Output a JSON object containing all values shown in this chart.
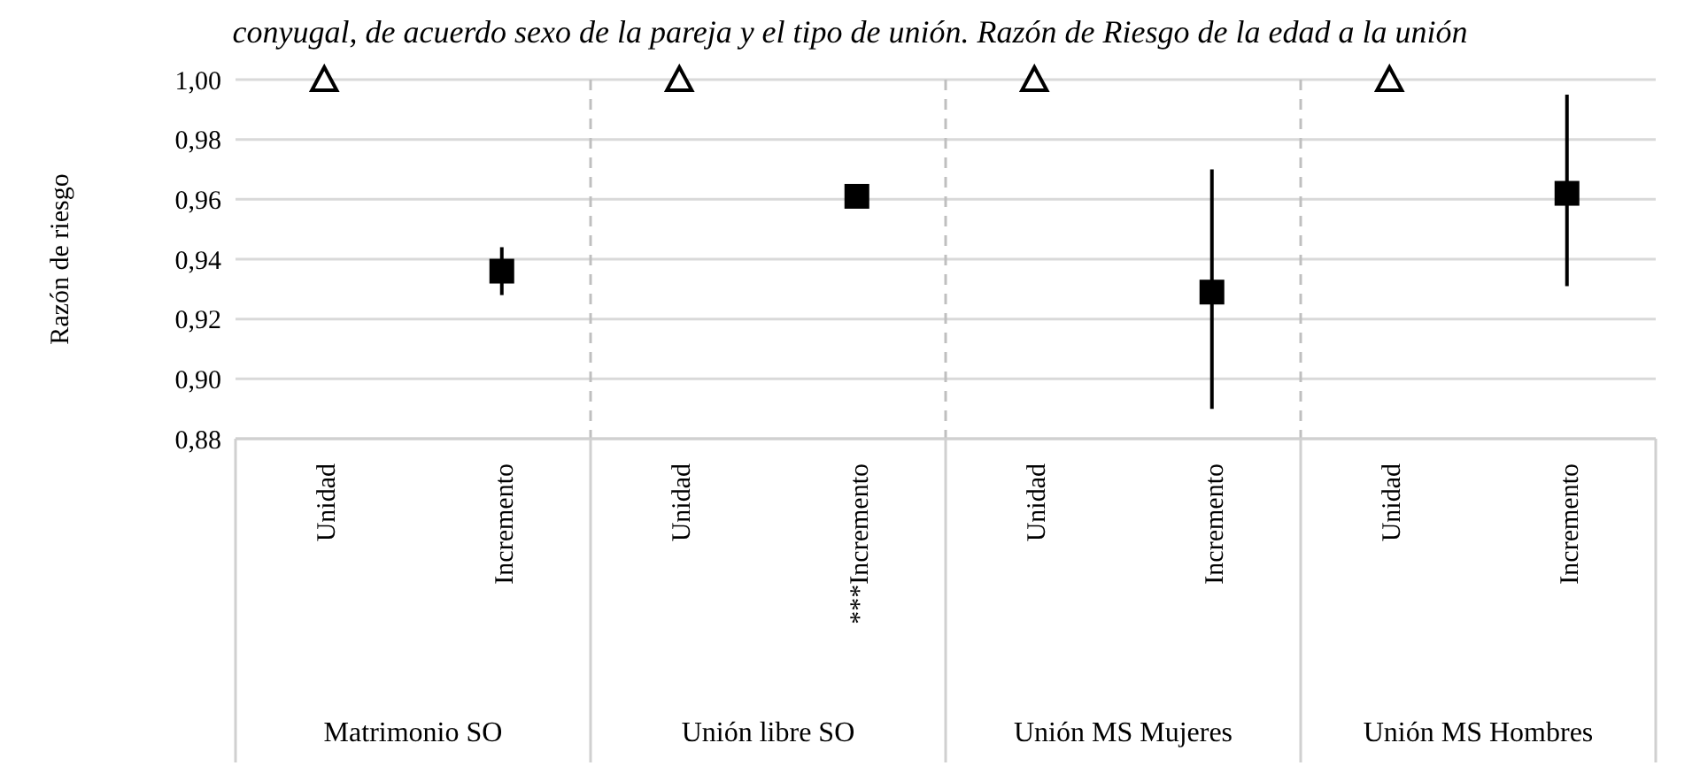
{
  "chart_data": {
    "type": "scatter",
    "title": "conyugal, de acuerdo sexo de la pareja y el tipo de unión. Razón de Riesgo de la edad a la unión",
    "ylabel": "Razón de riesgo",
    "categories": [
      "Unidad",
      "Incremento",
      "Unidad",
      "***Incremento",
      "Unidad",
      "Incremento",
      "Unidad",
      "Incremento"
    ],
    "annotations": [
      "Matrimonio SO",
      "Unión libre SO",
      "Unión MS Mujeres",
      "Unión MS Hombres"
    ],
    "series": [
      {
        "color": "#000000",
        "marker": "triangle",
        "values": [
          1.0,
          null,
          1.0,
          null,
          1.0,
          null,
          1.0,
          null
        ]
      },
      {
        "color": "#000000",
        "marker": "square",
        "values": [
          null,
          0.936,
          null,
          0.961,
          null,
          0.929,
          null,
          0.962
        ],
        "errors": [
          null,
          [
            0.928,
            0.944
          ],
          null,
          null,
          null,
          [
            0.89,
            0.97
          ],
          null,
          [
            0.931,
            0.995
          ]
        ]
      }
    ],
    "ylim": [
      0.88,
      1.0
    ],
    "yticks": [
      {
        "value": 0.88,
        "label": "0,88"
      },
      {
        "value": 0.9,
        "label": "0,90"
      },
      {
        "value": 0.92,
        "label": "0,92"
      },
      {
        "value": 0.94,
        "label": "0,94"
      },
      {
        "value": 0.96,
        "label": "0,96"
      },
      {
        "value": 0.98,
        "label": "0,98"
      },
      {
        "value": 1.0,
        "label": "1,00"
      }
    ],
    "grid": "y"
  }
}
